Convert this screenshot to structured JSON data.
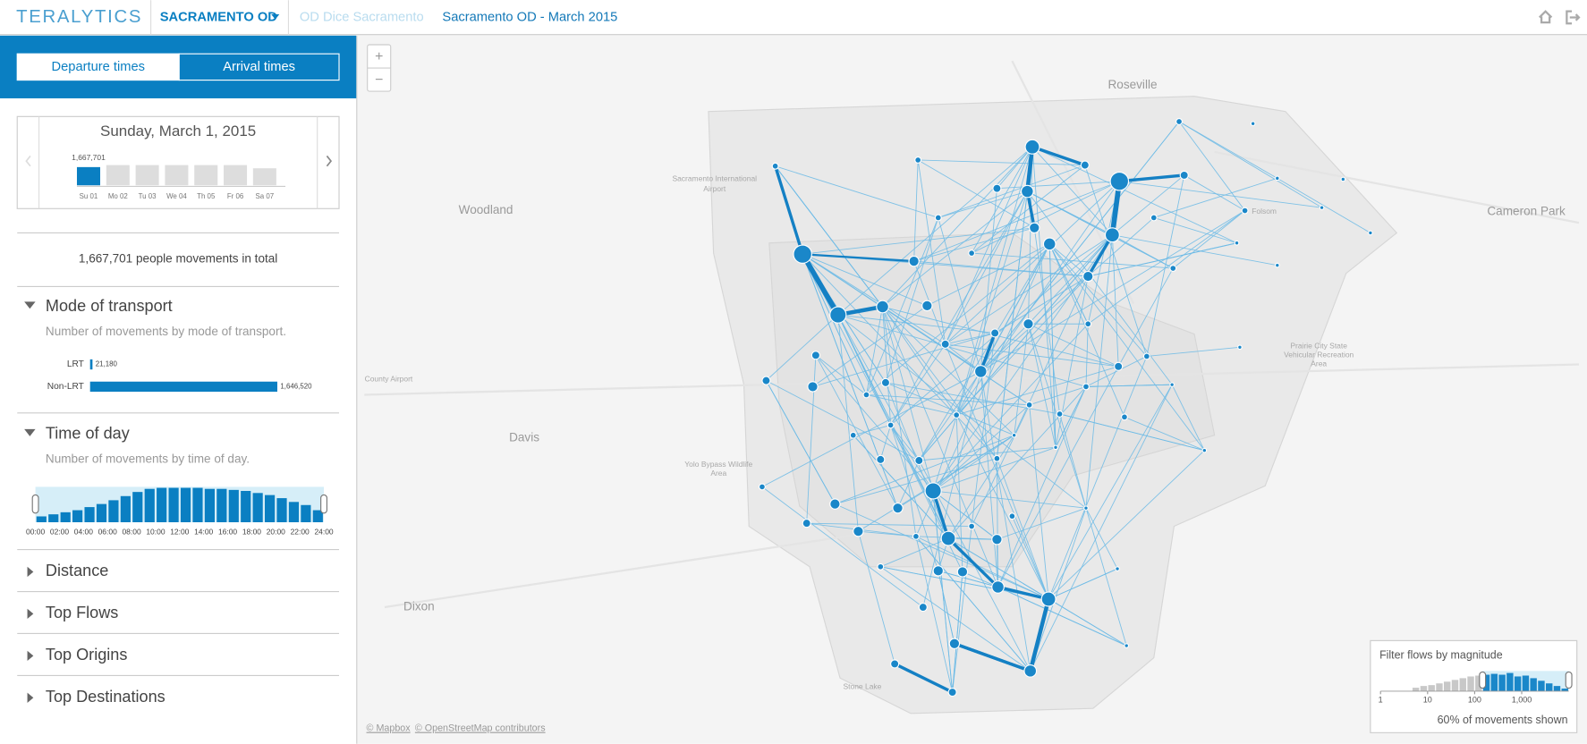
{
  "header": {
    "logo": "TERALYTICS",
    "nav": [
      "SACRAMENTO OD",
      "OD Dice Sacramento",
      "Sacramento OD - March 2015"
    ]
  },
  "sidebar": {
    "tabs": [
      "Departure times",
      "Arrival times"
    ],
    "date": "Sunday, March 1, 2015",
    "days": [
      {
        "label": "Su 01",
        "value": 1667701,
        "value_label": "1,667,701"
      },
      {
        "label": "Mo 02",
        "value": 1850000
      },
      {
        "label": "Tu 03",
        "value": 1850000
      },
      {
        "label": "We 04",
        "value": 1850000
      },
      {
        "label": "Th 05",
        "value": 1850000
      },
      {
        "label": "Fr 06",
        "value": 1850000
      },
      {
        "label": "Sa 07",
        "value": 1560000
      }
    ],
    "total": "1,667,701 people movements in total",
    "mode": {
      "title": "Mode of transport",
      "subtitle": "Number of movements by mode of transport.",
      "bars": [
        {
          "label": "LRT",
          "value": 21180,
          "value_label": "21,180"
        },
        {
          "label": "Non-LRT",
          "value": 1646520,
          "value_label": "1,646,520"
        }
      ]
    },
    "time_of_day": {
      "title": "Time of day",
      "subtitle": "Number of movements by time of day.",
      "values": [
        17000,
        23000,
        29000,
        35000,
        44000,
        53000,
        64000,
        76000,
        88000,
        97000,
        100000,
        100000,
        100000,
        100000,
        97000,
        97000,
        94000,
        91000,
        85000,
        79000,
        70000,
        59000,
        50000,
        35000
      ],
      "ticks": [
        "00:00",
        "02:00",
        "04:00",
        "06:00",
        "08:00",
        "10:00",
        "12:00",
        "14:00",
        "16:00",
        "18:00",
        "20:00",
        "22:00",
        "24:00"
      ]
    },
    "collapsed": [
      "Distance",
      "Top Flows",
      "Top Origins",
      "Top Destinations"
    ]
  },
  "map": {
    "zoom": [
      "+",
      "−"
    ],
    "places": [
      {
        "name": "Roseville",
        "size": "big"
      },
      {
        "name": "Woodland",
        "size": "big"
      },
      {
        "name": "Cameron Park",
        "size": "big"
      },
      {
        "name": "Davis",
        "size": "big"
      },
      {
        "name": "Dixon",
        "size": "big"
      },
      {
        "name": "Folsom",
        "size": "small"
      },
      {
        "name": "Sacramento International",
        "size": "small"
      },
      {
        "name": "Airport",
        "size": "small"
      },
      {
        "name": "County Airport",
        "size": "small"
      },
      {
        "name": "Yolo Bypass Wildlife",
        "size": "small"
      },
      {
        "name": "Area",
        "size": "small"
      },
      {
        "name": "Prairie City State",
        "size": "small"
      },
      {
        "name": "Vehicular Recreation",
        "size": "small"
      },
      {
        "name": "Area",
        "size": "small"
      },
      {
        "name": "Stone Lake",
        "size": "small"
      }
    ],
    "attribution": [
      "© Mapbox",
      "© OpenStreetMap contributors"
    ]
  },
  "filter": {
    "title": "Filter flows by magnitude",
    "log": true,
    "bins": [
      1,
      1.47,
      2.15,
      3.16,
      4.64,
      6.81,
      10,
      14.7,
      21.5,
      31.6,
      46.4,
      68.1,
      100,
      147,
      215,
      316,
      464,
      681,
      1000,
      1468,
      2154,
      3162,
      4642,
      6813,
      10000
    ],
    "values": [
      0,
      0,
      0,
      0,
      40,
      60,
      70,
      90,
      110,
      130,
      150,
      170,
      180,
      190,
      200,
      190,
      210,
      170,
      180,
      150,
      120,
      90,
      60,
      30
    ],
    "selection": [
      147,
      10000
    ],
    "color": "#1a87c9",
    "unselected_color": "#c8c8c8",
    "xlim": [
      1,
      10000
    ],
    "xticks": [
      1,
      10,
      100,
      {
        "value": 1000,
        "label": "1,000"
      }
    ],
    "footer": "60% of movements shown"
  }
}
